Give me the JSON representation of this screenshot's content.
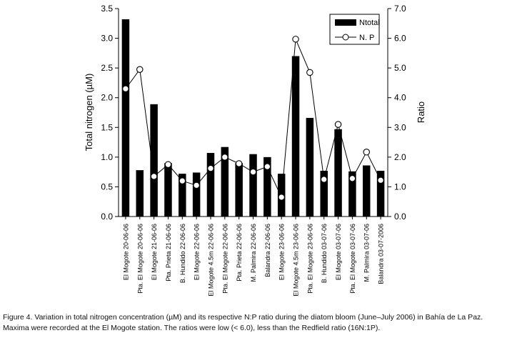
{
  "chart_data": {
    "type": "bar",
    "categories": [
      "El Mogote 20-06-06",
      "Pta. El Mogote 20-06-06",
      "El Mogote 21-06-06",
      "Pta. Prieta 21-06-06",
      "B. Hundido 22-06-06",
      "El Mogote 22-06-06",
      "El Mogote 4.5m 22-06-06",
      "Pta. El Mogote 22-06-06",
      "Pta. Prieta 22-06-06",
      "M. Palmira 22-06-06",
      "Balandra 22-06-06",
      "El Mogote 23-06-06",
      "El Mogote 4.5m 23-06-06",
      "Pta. El Mogote 23-06-06",
      "B. Hundido 03-07-06",
      "El Mogote 03-07-06",
      "Pta. El Mogote 03-07-06",
      "M. Palmira 03-07-06",
      "Balandra 03-07-2006"
    ],
    "series": [
      {
        "name": "Ntotal",
        "type": "bar",
        "axis": "left",
        "values": [
          3.32,
          0.78,
          1.89,
          0.9,
          0.72,
          0.74,
          1.07,
          1.17,
          0.9,
          1.05,
          1.0,
          0.72,
          2.7,
          1.66,
          0.77,
          1.47,
          0.76,
          0.86,
          0.77
        ]
      },
      {
        "name": "N. P",
        "type": "line",
        "axis": "right",
        "values": [
          4.3,
          4.95,
          1.35,
          1.75,
          1.2,
          1.05,
          1.62,
          2.0,
          1.78,
          1.5,
          1.68,
          0.65,
          5.97,
          4.85,
          1.25,
          3.1,
          1.28,
          2.17,
          1.22
        ]
      }
    ],
    "ylabel": "Total nitrogen (µM)",
    "ylim": [
      0,
      3.5
    ],
    "yticks": [
      "0.0",
      "0.5",
      "1.0",
      "1.5",
      "2.0",
      "2.5",
      "3.0",
      "3.5"
    ],
    "y2label": "Ratio",
    "y2lim": [
      0,
      7
    ],
    "y2ticks": [
      "0.0",
      "1.0",
      "2.0",
      "3.0",
      "4.0",
      "5.0",
      "6.0",
      "7.0"
    ],
    "legend_position": "top-right",
    "grid": false,
    "colors": {
      "bar": "#000000",
      "line": "#000000",
      "marker_fill": "#ffffff"
    }
  },
  "caption": {
    "line1": "Figure 4. Variation in total nitrogen concentration (µM) and its respective N:P ratio during the diatom bloom (June–July 2006) in Bahía de La Paz.",
    "line2": "Maxima were recorded at the El Mogote station. The ratios were low (< 6.0), less than the Redfield ratio (16N:1P)."
  }
}
